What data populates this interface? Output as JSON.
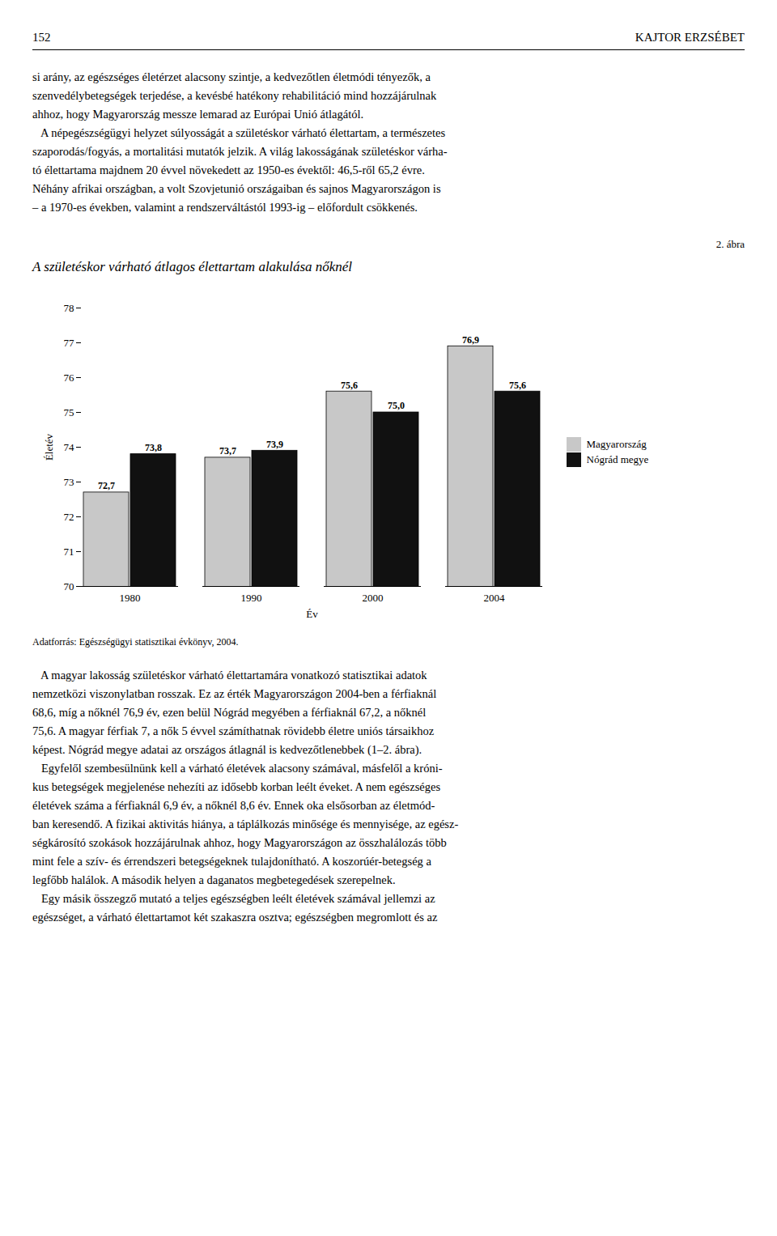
{
  "chart_data": {
    "type": "bar",
    "title": "A születéskor várható átlagos élettartam alakulása nőknél",
    "xlabel": "Év",
    "ylabel": "Életév",
    "categories": [
      "1980",
      "1990",
      "2000",
      "2004"
    ],
    "series": [
      {
        "name": "Magyarország",
        "color": "#c8c8c8",
        "values": [
          72.7,
          73.7,
          75.6,
          76.9
        ],
        "value_labels": [
          "72,7",
          "73,7",
          "75,6",
          "76,9"
        ]
      },
      {
        "name": "Nógrád megye",
        "color": "#111111",
        "values": [
          73.8,
          73.9,
          75.0,
          75.6
        ],
        "value_labels": [
          "73,8",
          "73,9",
          "75,0",
          "75,6"
        ]
      }
    ],
    "ylim": [
      70,
      78
    ],
    "yticks": [
      70,
      71,
      72,
      73,
      74,
      75,
      76,
      77,
      78
    ],
    "data_labels": true,
    "legend": "right",
    "annotations": [
      "152",
      "KAJTOR ERZSÉBET",
      "si arány, az egészséges életérzet alacsony szintje, a kedvezőtlen életmódi tényezők, a",
      "szenvedélybetegségek terjedése, a kevésbé hatékony rehabilitáció mind hozzájárulnak",
      "ahhoz, hogy Magyarország messze lemarad az Európai Unió átlagától.",
      "   A népegészségügyi helyzet súlyosságát a születéskor várható élettartam, a természetes",
      "szaporodás/fogyás, a mortalitási mutatók jelzik. A világ lakosságának születéskor várha-",
      "tó élettartama majdnem 20 évvel növekedett az 1950-es évektől: 46,5-ről 65,2 évre.",
      "Néhány afrikai országban, a volt Szovjetunió országaiban és sajnos Magyarországon is",
      "– a 1970-es években, valamint a rendszerváltástól 1993-ig – előfordult csökkenés.",
      "2. ábra",
      "Adatforrás: Egészségügyi statisztikai évkönyv, 2004.",
      "   A magyar lakosság születéskor várható élettartamára vonatkozó statisztikai adatok",
      "nemzetközi viszonylatban rosszak. Ez az érték Magyarországon 2004-ben a férfiaknál",
      "68,6, míg a nőknél 76,9 év, ezen belül Nógrád megyében a férfiaknál 67,2, a nőknél",
      "75,6. A magyar férfiak 7, a nők 5 évvel számíthatnak rövidebb életre uniós társaikhoz",
      "képest. Nógrád megye adatai az országos átlagnál is kedvezőtlenebbek (1–2. ábra).",
      "   Egyfelől szembesülnünk kell a várható életévek alacsony számával, másfelől a króni-",
      "kus betegségek megjelenése nehezíti az idősebb korban leélt éveket. A nem egészséges",
      "életévek száma a férfiaknál 6,9 év, a nőknél 8,6 év. Ennek oka elsősorban az életmód-",
      "ban keresendő. A fizikai aktivitás hiánya, a táplálkozás minősége és mennyisége, az egész-",
      "ségkárosító szokások hozzájárulnak ahhoz, hogy Magyarországon az összhalálozás több",
      "mint fele a szív- és érrendszeri betegségeknek tulajdonítható. A koszorúér-betegség a",
      "legfőbb halálok. A második helyen a daganatos megbetegedések szerepelnek.",
      "   Egy másik összegző mutató a teljes egészségben leélt életévek számával jellemzi az",
      "egészséget, a várható élettartamot két szakaszra osztva; egészségben megromlott és az"
    ]
  }
}
